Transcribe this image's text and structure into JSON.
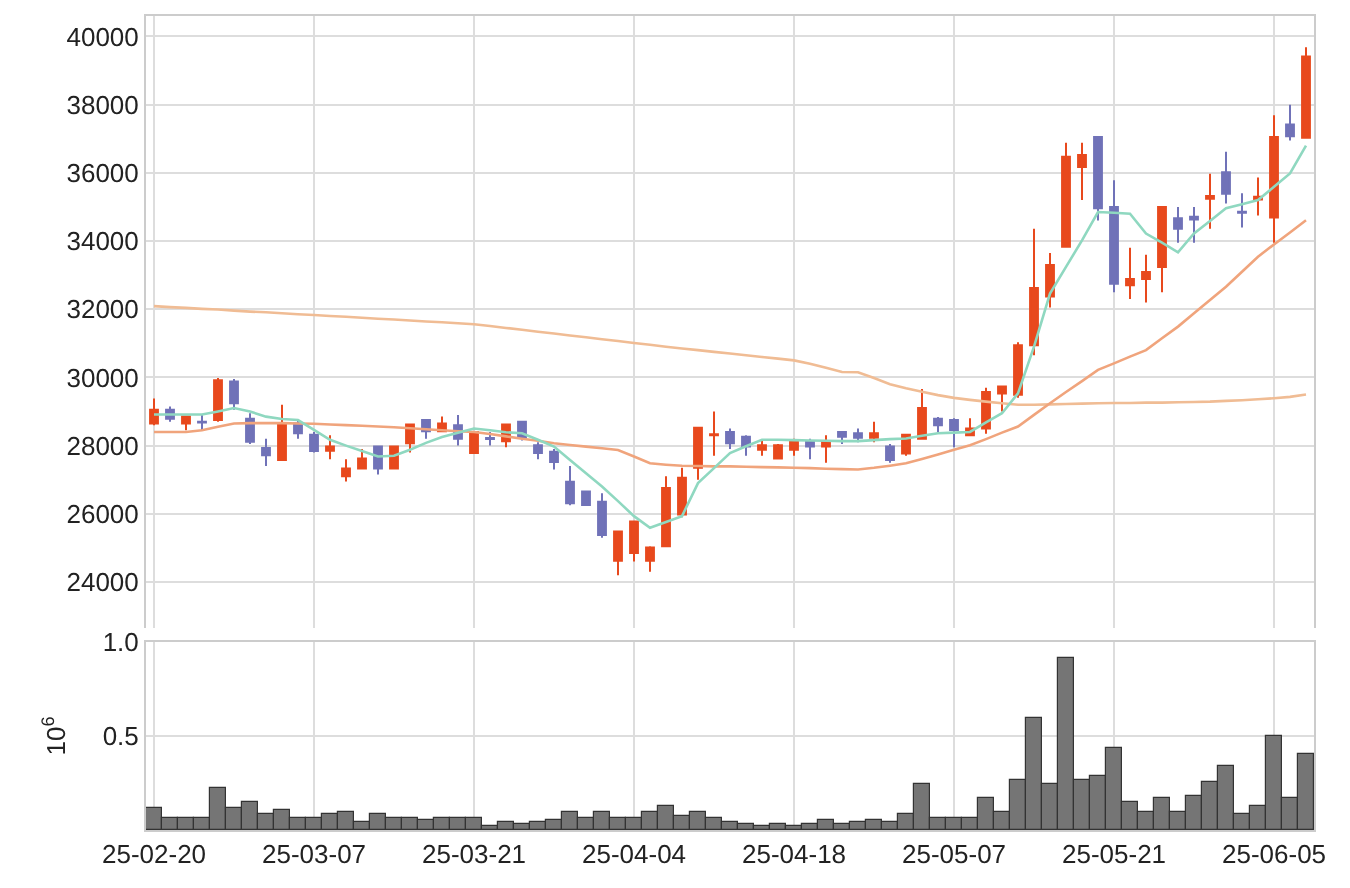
{
  "chart_data": [
    {
      "type": "candlestick",
      "categories": [
        null,
        null,
        null,
        null,
        null,
        null,
        null,
        null,
        null,
        null,
        null,
        null,
        null,
        null,
        null,
        null,
        null,
        null,
        null,
        null,
        null,
        null,
        null,
        null,
        null,
        null,
        null,
        null,
        null,
        null,
        null,
        null,
        null,
        null,
        null,
        null,
        null,
        null,
        null,
        null,
        null,
        null,
        null,
        null,
        null,
        null,
        null,
        null,
        null,
        null,
        null,
        null,
        null,
        null,
        null,
        null,
        null,
        null,
        null,
        null,
        null,
        null,
        null,
        null,
        null,
        null,
        null,
        null,
        null,
        null,
        null,
        null,
        null
      ],
      "ohlc": [
        [
          28650,
          29380,
          28600,
          29050
        ],
        [
          29050,
          29150,
          28700,
          28790
        ],
        [
          28650,
          28850,
          28450,
          28850
        ],
        [
          28700,
          28900,
          28450,
          28680
        ],
        [
          28750,
          29980,
          28700,
          29920
        ],
        [
          29880,
          29950,
          29050,
          29240
        ],
        [
          28790,
          28950,
          28050,
          28110
        ],
        [
          27930,
          28200,
          27400,
          27720
        ],
        [
          27580,
          29200,
          27580,
          28650
        ],
        [
          28650,
          28750,
          28200,
          28360
        ],
        [
          28320,
          28400,
          27800,
          27840
        ],
        [
          27850,
          28300,
          27600,
          27970
        ],
        [
          27100,
          27600,
          26950,
          27330
        ],
        [
          27330,
          27900,
          27300,
          27620
        ],
        [
          27970,
          27970,
          27150,
          27330
        ],
        [
          27330,
          28000,
          27330,
          27970
        ],
        [
          28070,
          28650,
          27800,
          28620
        ],
        [
          28750,
          28750,
          28200,
          28420
        ],
        [
          28420,
          28850,
          28400,
          28650
        ],
        [
          28600,
          28900,
          28000,
          28200
        ],
        [
          27780,
          28400,
          27780,
          28400
        ],
        [
          28220,
          28400,
          28000,
          28190
        ],
        [
          28130,
          28650,
          27950,
          28620
        ],
        [
          28700,
          28700,
          28150,
          28230
        ],
        [
          28010,
          28100,
          27600,
          27780
        ],
        [
          27820,
          27900,
          27300,
          27520
        ],
        [
          26940,
          27400,
          26250,
          26310
        ],
        [
          26650,
          26650,
          26250,
          26260
        ],
        [
          26350,
          26600,
          25300,
          25380
        ],
        [
          24620,
          25500,
          24200,
          25480
        ],
        [
          24850,
          25800,
          24600,
          25770
        ],
        [
          24620,
          25050,
          24300,
          25010
        ],
        [
          25050,
          27100,
          25050,
          26760
        ],
        [
          25980,
          27350,
          25900,
          27060
        ],
        [
          27350,
          28520,
          27000,
          28520
        ],
        [
          28300,
          29000,
          27700,
          28330
        ],
        [
          28400,
          28500,
          27900,
          28070
        ],
        [
          28260,
          28300,
          27700,
          27970
        ],
        [
          27880,
          28150,
          27700,
          28010
        ],
        [
          27620,
          28050,
          27600,
          28010
        ],
        [
          27880,
          28200,
          27700,
          28110
        ],
        [
          28110,
          28200,
          27600,
          27970
        ],
        [
          27970,
          28300,
          27500,
          28110
        ],
        [
          28400,
          28400,
          28050,
          28260
        ],
        [
          28360,
          28500,
          28100,
          28230
        ],
        [
          28230,
          28700,
          28100,
          28360
        ],
        [
          27970,
          28050,
          27500,
          27580
        ],
        [
          27770,
          28350,
          27700,
          28320
        ],
        [
          28200,
          29660,
          28200,
          29100
        ],
        [
          28790,
          28840,
          28400,
          28600
        ],
        [
          28750,
          28800,
          27950,
          28460
        ],
        [
          28300,
          28800,
          28300,
          28500
        ],
        [
          28500,
          29700,
          28350,
          29570
        ],
        [
          29530,
          29730,
          29000,
          29730
        ],
        [
          29490,
          31030,
          29400,
          30940
        ],
        [
          30940,
          34360,
          30650,
          32620
        ],
        [
          32370,
          33650,
          32050,
          33300
        ],
        [
          33830,
          36880,
          33830,
          36470
        ],
        [
          36170,
          36880,
          35200,
          36520
        ],
        [
          37050,
          37050,
          34600,
          34960
        ],
        [
          35000,
          35780,
          32500,
          32750
        ],
        [
          32700,
          33800,
          32300,
          32890
        ],
        [
          32890,
          33600,
          32200,
          33090
        ],
        [
          33240,
          35000,
          32500,
          35000
        ],
        [
          34670,
          35000,
          33950,
          34360
        ],
        [
          34710,
          35000,
          33950,
          34630
        ],
        [
          35240,
          35970,
          34360,
          35320
        ],
        [
          36020,
          36620,
          35100,
          35390
        ],
        [
          34860,
          35400,
          34400,
          34830
        ],
        [
          35220,
          35860,
          34750,
          35300
        ],
        [
          34690,
          37690,
          33950,
          37050
        ],
        [
          37420,
          38000,
          36950,
          37070
        ],
        [
          37030,
          39680,
          37030,
          39410
        ]
      ],
      "colors": [
        "#e8491d",
        "#7072b8",
        "#e8491d",
        "#7072b8",
        "#e8491d",
        "#7072b8",
        "#7072b8",
        "#7072b8",
        "#e8491d",
        "#7072b8",
        "#7072b8",
        "#e8491d",
        "#e8491d",
        "#e8491d",
        "#7072b8",
        "#e8491d",
        "#e8491d",
        "#7072b8",
        "#e8491d",
        "#7072b8",
        "#e8491d",
        "#7072b8",
        "#e8491d",
        "#7072b8",
        "#7072b8",
        "#7072b8",
        "#7072b8",
        "#7072b8",
        "#7072b8",
        "#e8491d",
        "#e8491d",
        "#e8491d",
        "#e8491d",
        "#e8491d",
        "#e8491d",
        "#e8491d",
        "#7072b8",
        "#7072b8",
        "#e8491d",
        "#e8491d",
        "#e8491d",
        "#7072b8",
        "#e8491d",
        "#7072b8",
        "#7072b8",
        "#e8491d",
        "#7072b8",
        "#e8491d",
        "#e8491d",
        "#7072b8",
        "#7072b8",
        "#e8491d",
        "#e8491d",
        "#e8491d",
        "#e8491d",
        "#e8491d",
        "#e8491d",
        "#e8491d",
        "#e8491d",
        "#7072b8",
        "#7072b8",
        "#e8491d",
        "#e8491d",
        "#e8491d",
        "#7072b8",
        "#7072b8",
        "#e8491d",
        "#7072b8",
        "#7072b8",
        "#e8491d",
        "#e8491d",
        "#7072b8",
        "#e8491d"
      ],
      "series": [
        {
          "type": "line",
          "color": "#f0bc94",
          "values": [
            32090,
            32060,
            32040,
            32010,
            31990,
            31960,
            31930,
            31910,
            31880,
            31850,
            31830,
            31800,
            31780,
            31750,
            31720,
            31700,
            31670,
            31640,
            31620,
            31590,
            31560,
            31510,
            31450,
            31400,
            31340,
            31290,
            31230,
            31180,
            31120,
            31070,
            31010,
            30960,
            30900,
            30850,
            30800,
            30750,
            30700,
            30650,
            30600,
            30550,
            30500,
            30400,
            30280,
            30160,
            30150,
            29980,
            29800,
            29680,
            29580,
            29480,
            29400,
            29340,
            29290,
            29240,
            29200,
            29200,
            29210,
            29220,
            29230,
            29240,
            29250,
            29250,
            29260,
            29260,
            29270,
            29280,
            29290,
            29310,
            29330,
            29360,
            29390,
            29430,
            29500
          ]
        },
        {
          "type": "line",
          "color": "#f0a47c",
          "values": [
            28400,
            28400,
            28400,
            28450,
            28550,
            28650,
            28660,
            28660,
            28660,
            28650,
            28640,
            28620,
            28600,
            28580,
            28560,
            28540,
            28510,
            28480,
            28450,
            28420,
            28400,
            28340,
            28270,
            28200,
            28140,
            28070,
            28020,
            27970,
            27920,
            27870,
            27680,
            27480,
            27440,
            27410,
            27400,
            27390,
            27390,
            27380,
            27370,
            27360,
            27350,
            27340,
            27320,
            27310,
            27300,
            27350,
            27410,
            27480,
            27610,
            27740,
            27880,
            28010,
            28190,
            28380,
            28560,
            28900,
            29240,
            29570,
            29890,
            30220,
            30410,
            30610,
            30800,
            31150,
            31490,
            31880,
            32270,
            32660,
            33100,
            33540,
            33900,
            34250,
            34610
          ]
        },
        {
          "type": "line",
          "color": "#8fd8c0",
          "values": [
            28910,
            28910,
            28910,
            28910,
            29000,
            29100,
            29000,
            28850,
            28780,
            28750,
            28460,
            28170,
            28000,
            27840,
            27680,
            27700,
            27880,
            28080,
            28250,
            28380,
            28500,
            28450,
            28390,
            28360,
            28170,
            27970,
            27580,
            27190,
            26800,
            26370,
            25930,
            25590,
            25760,
            25930,
            26900,
            27340,
            27780,
            27980,
            28170,
            28170,
            28160,
            28150,
            28140,
            28130,
            28130,
            28160,
            28190,
            28210,
            28290,
            28360,
            28380,
            28400,
            28680,
            28950,
            29530,
            30900,
            32460,
            33240,
            34020,
            34850,
            34830,
            34800,
            34220,
            33950,
            33670,
            34220,
            34590,
            34960,
            35080,
            35200,
            35590,
            35980,
            36800
          ]
        }
      ],
      "ylim": [
        22650,
        40600
      ],
      "yticks": [
        24000,
        26000,
        28000,
        30000,
        32000,
        34000,
        36000,
        38000,
        40000
      ],
      "grid": true,
      "tick_labels": "y"
    },
    {
      "type": "bar",
      "categories": [
        "25-02-20",
        null,
        null,
        null,
        null,
        null,
        null,
        null,
        null,
        null,
        "25-03-07",
        null,
        null,
        null,
        null,
        null,
        null,
        null,
        null,
        null,
        "25-03-21",
        null,
        null,
        null,
        null,
        null,
        null,
        null,
        null,
        null,
        "25-04-04",
        null,
        null,
        null,
        null,
        null,
        null,
        null,
        null,
        null,
        "25-04-18",
        null,
        null,
        null,
        null,
        null,
        null,
        null,
        null,
        null,
        "25-05-07",
        null,
        null,
        null,
        null,
        null,
        null,
        null,
        null,
        null,
        "25-05-21",
        null,
        null,
        null,
        null,
        null,
        null,
        null,
        null,
        null,
        "25-06-05",
        null,
        null
      ],
      "color": "#757575",
      "values": [
        0.12,
        0.06,
        0.06,
        0.06,
        0.22,
        0.12,
        0.15,
        0.08,
        0.11,
        0.06,
        0.06,
        0.08,
        0.1,
        0.04,
        0.08,
        0.06,
        0.06,
        0.05,
        0.06,
        0.06,
        0.06,
        0.02,
        0.04,
        0.03,
        0.04,
        0.05,
        0.1,
        0.06,
        0.1,
        0.06,
        0.06,
        0.1,
        0.13,
        0.07,
        0.1,
        0.06,
        0.04,
        0.03,
        0.02,
        0.03,
        0.02,
        0.03,
        0.05,
        0.03,
        0.04,
        0.05,
        0.04,
        0.08,
        0.25,
        0.06,
        0.06,
        0.06,
        0.17,
        0.1,
        0.27,
        0.6,
        0.25,
        0.91,
        0.27,
        0.29,
        0.44,
        0.15,
        0.1,
        0.17,
        0.1,
        0.18,
        0.26,
        0.34,
        0.09,
        0.13,
        0.5,
        0.17,
        0.4
      ],
      "ylim": [
        0,
        1.0
      ],
      "yticks": [
        0.5,
        {
          "value": 1.0,
          "label": "1.0"
        }
      ],
      "ylabel": "10$^{6}$",
      "grid": true
    }
  ]
}
